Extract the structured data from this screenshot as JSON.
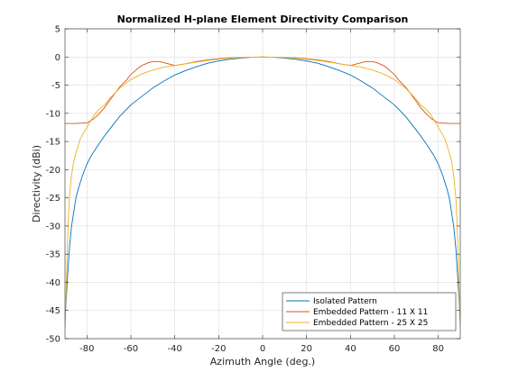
{
  "chart_data": {
    "type": "line",
    "title": "Normalized H-plane Element Directivity Comparison",
    "xlabel": "Azimuth Angle (deg.)",
    "ylabel": "Directivity (dBi)",
    "xlim": [
      -90,
      90
    ],
    "ylim": [
      -50,
      5
    ],
    "x_ticks": [
      -80,
      -60,
      -40,
      -20,
      0,
      20,
      40,
      60,
      80
    ],
    "y_ticks": [
      5,
      0,
      -5,
      -10,
      -15,
      -20,
      -25,
      -30,
      -35,
      -40,
      -45,
      -50
    ],
    "x_tick_labels": [
      "-80",
      "-60",
      "-40",
      "-20",
      "0",
      "20",
      "40",
      "60",
      "80"
    ],
    "y_tick_labels": [
      "5",
      "0",
      "-5",
      "-10",
      "-15",
      "-20",
      "-25",
      "-30",
      "-35",
      "-40",
      "-45",
      "-50"
    ],
    "grid": true,
    "legend_position": "bottom-right",
    "series": [
      {
        "name": "Isolated Pattern",
        "color": "#0072bd",
        "x": [
          -90,
          -89,
          -88,
          -87,
          -86,
          -85,
          -84,
          -82,
          -80,
          -78,
          -75,
          -72,
          -70,
          -65,
          -60,
          -55,
          -50,
          -45,
          -40,
          -35,
          -30,
          -25,
          -20,
          -15,
          -10,
          -5,
          0,
          5,
          10,
          15,
          20,
          25,
          30,
          35,
          40,
          45,
          50,
          55,
          60,
          65,
          70,
          72,
          75,
          78,
          80,
          82,
          84,
          85,
          86,
          87,
          88,
          89,
          90
        ],
        "y": [
          -47,
          -40,
          -34,
          -30,
          -27.5,
          -25,
          -23.5,
          -21,
          -19,
          -17.5,
          -15.7,
          -14,
          -13,
          -10.5,
          -8.5,
          -7,
          -5.5,
          -4.3,
          -3.2,
          -2.4,
          -1.7,
          -1.1,
          -0.7,
          -0.4,
          -0.2,
          -0.05,
          0,
          -0.05,
          -0.2,
          -0.4,
          -0.7,
          -1.1,
          -1.7,
          -2.4,
          -3.2,
          -4.3,
          -5.5,
          -7,
          -8.5,
          -10.5,
          -13,
          -14,
          -15.7,
          -17.5,
          -19,
          -21,
          -23.5,
          -25,
          -27.5,
          -30,
          -34,
          -40,
          -47
        ]
      },
      {
        "name": "Embedded Pattern - 11 X 11",
        "color": "#d95319",
        "x": [
          -90,
          -85,
          -80,
          -77,
          -75,
          -72,
          -70,
          -67,
          -65,
          -62,
          -60,
          -57,
          -55,
          -52,
          -50,
          -47,
          -45,
          -42,
          -40,
          -35,
          -30,
          -25,
          -20,
          -15,
          -10,
          -5,
          0,
          5,
          10,
          15,
          20,
          25,
          30,
          35,
          40,
          42,
          45,
          47,
          50,
          52,
          55,
          57,
          60,
          62,
          65,
          67,
          70,
          72,
          75,
          77,
          80,
          85,
          90
        ],
        "y": [
          -11.8,
          -11.8,
          -11.7,
          -11,
          -10.3,
          -9,
          -7.9,
          -6.3,
          -5.3,
          -4.1,
          -3.1,
          -2.1,
          -1.5,
          -1,
          -0.8,
          -0.8,
          -1,
          -1.3,
          -1.5,
          -1.2,
          -0.8,
          -0.5,
          -0.3,
          -0.15,
          -0.1,
          -0.05,
          0,
          -0.05,
          -0.1,
          -0.15,
          -0.3,
          -0.5,
          -0.8,
          -1.2,
          -1.5,
          -1.3,
          -1,
          -0.8,
          -0.8,
          -1,
          -1.5,
          -2.1,
          -3.1,
          -4.1,
          -5.3,
          -6.3,
          -7.9,
          -9,
          -10.3,
          -11,
          -11.7,
          -11.8,
          -11.8
        ]
      },
      {
        "name": "Embedded Pattern - 25 X 25",
        "color": "#edb120",
        "x": [
          -90,
          -89.5,
          -89,
          -88.5,
          -88,
          -87,
          -86,
          -85,
          -83,
          -80,
          -77,
          -75,
          -72,
          -70,
          -65,
          -60,
          -55,
          -50,
          -45,
          -40,
          -35,
          -30,
          -25,
          -20,
          -15,
          -10,
          -5,
          0,
          5,
          10,
          15,
          20,
          25,
          30,
          35,
          40,
          45,
          50,
          55,
          60,
          65,
          70,
          72,
          75,
          77,
          80,
          83,
          85,
          86,
          87,
          88,
          88.5,
          89,
          89.5,
          90
        ],
        "y": [
          -48,
          -42,
          -35,
          -29,
          -25,
          -21,
          -18.5,
          -17,
          -14.5,
          -12.5,
          -10.5,
          -9.5,
          -8.5,
          -7.5,
          -5.5,
          -4,
          -3,
          -2.3,
          -1.8,
          -1.5,
          -1.2,
          -0.9,
          -0.6,
          -0.4,
          -0.2,
          -0.1,
          -0.05,
          0,
          -0.05,
          -0.1,
          -0.2,
          -0.4,
          -0.6,
          -0.9,
          -1.2,
          -1.5,
          -1.8,
          -2.3,
          -3,
          -4,
          -5.5,
          -7.5,
          -8.5,
          -9.5,
          -10.5,
          -12.5,
          -14.5,
          -17,
          -18.5,
          -21,
          -25,
          -29,
          -35,
          -42,
          -48
        ]
      }
    ]
  }
}
